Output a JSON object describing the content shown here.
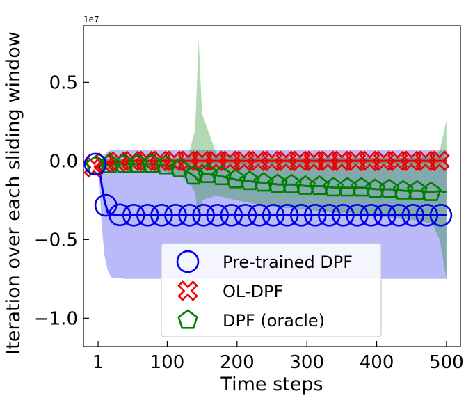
{
  "chart_data": {
    "type": "line",
    "title": "",
    "xlabel": "Time steps",
    "ylabel": "Iteration over each sliding window",
    "offset_text": "1e7",
    "xlim": [
      -20,
      520
    ],
    "ylim": [
      -1.18,
      0.86
    ],
    "x_ticks": [
      1,
      100,
      200,
      300,
      400,
      500
    ],
    "x_tick_labels": [
      "1",
      "100",
      "200",
      "300",
      "400",
      "500"
    ],
    "y_ticks": [
      -1.0,
      -0.5,
      0.0,
      0.5
    ],
    "y_tick_labels": [
      "−1.0",
      "−0.5",
      "0.0",
      "0.5"
    ],
    "grid": false,
    "legend_position": "lower-center",
    "series": [
      {
        "name": "Pre-trained DPF",
        "color": "#0000ee",
        "marker": "circle",
        "x": [
          1,
          3,
          6,
          10,
          15,
          20,
          40,
          60,
          80,
          100,
          150,
          200,
          250,
          300,
          350,
          400,
          450,
          500
        ],
        "y": [
          -0.02,
          -0.05,
          -0.15,
          -0.25,
          -0.33,
          -0.34,
          -0.345,
          -0.345,
          -0.345,
          -0.345,
          -0.345,
          -0.345,
          -0.345,
          -0.345,
          -0.345,
          -0.345,
          -0.345,
          -0.345
        ],
        "band_upper": [
          0.0,
          0.0,
          0.02,
          0.04,
          0.06,
          0.07,
          0.07,
          0.07,
          0.07,
          0.07,
          0.07,
          0.07,
          0.07,
          0.07,
          0.07,
          0.07,
          0.07,
          0.07
        ],
        "band_lower": [
          -0.05,
          -0.15,
          -0.4,
          -0.6,
          -0.7,
          -0.74,
          -0.75,
          -0.75,
          -0.75,
          -0.75,
          -0.75,
          -0.75,
          -0.75,
          -0.75,
          -0.75,
          -0.75,
          -0.75,
          -0.75
        ],
        "marker_x": [
          -3,
          12,
          32,
          52,
          72,
          92,
          112,
          132,
          152,
          172,
          192,
          212,
          232,
          252,
          272,
          292,
          312,
          332,
          352,
          372,
          392,
          412,
          432,
          452,
          472,
          492
        ]
      },
      {
        "name": "OL-DPF",
        "color": "#ee0000",
        "marker": "x",
        "x": [
          -5,
          10,
          50,
          100,
          150,
          200,
          250,
          300,
          350,
          400,
          450,
          500
        ],
        "y": [
          -0.04,
          -0.01,
          0.0,
          0.0,
          0.0,
          0.0,
          0.0,
          0.0,
          0.0,
          0.0,
          0.0,
          0.0
        ],
        "band_upper": [
          -0.02,
          0.01,
          0.02,
          0.02,
          0.02,
          0.02,
          0.02,
          0.02,
          0.02,
          0.02,
          0.02,
          0.02
        ],
        "band_lower": [
          -0.06,
          -0.03,
          -0.02,
          -0.02,
          -0.02,
          -0.02,
          -0.02,
          -0.02,
          -0.02,
          -0.02,
          -0.02,
          -0.02
        ],
        "marker_x": [
          -5,
          10,
          30,
          50,
          70,
          90,
          110,
          130,
          150,
          170,
          190,
          210,
          230,
          250,
          270,
          290,
          310,
          330,
          350,
          370,
          390,
          410,
          430,
          450,
          470,
          490
        ]
      },
      {
        "name": "DPF (oracle)",
        "color": "#008000",
        "marker": "pentagon",
        "x": [
          1,
          20,
          50,
          80,
          100,
          120,
          130,
          140,
          145,
          150,
          170,
          200,
          220,
          240,
          260,
          280,
          300,
          320,
          340,
          360,
          380,
          400,
          420,
          440,
          460,
          480,
          490,
          500
        ],
        "y": [
          -0.03,
          -0.02,
          -0.02,
          -0.02,
          -0.03,
          -0.05,
          -0.07,
          -0.1,
          -0.13,
          -0.08,
          -0.09,
          -0.12,
          -0.13,
          -0.14,
          -0.15,
          -0.15,
          -0.16,
          -0.16,
          -0.17,
          -0.17,
          -0.17,
          -0.18,
          -0.18,
          -0.19,
          -0.19,
          -0.2,
          -0.19,
          -0.2
        ],
        "band_upper": [
          0.0,
          0.01,
          0.01,
          0.01,
          0.01,
          0.02,
          0.03,
          0.2,
          0.77,
          0.3,
          0.05,
          0.03,
          0.03,
          0.02,
          0.02,
          0.02,
          0.02,
          0.02,
          0.02,
          0.02,
          0.02,
          0.02,
          0.02,
          0.02,
          0.02,
          0.05,
          0.06,
          0.26
        ],
        "band_lower": [
          -0.06,
          -0.05,
          -0.05,
          -0.06,
          -0.07,
          -0.1,
          -0.13,
          -0.2,
          -0.4,
          -0.25,
          -0.22,
          -0.25,
          -0.27,
          -0.28,
          -0.3,
          -0.3,
          -0.31,
          -0.32,
          -0.33,
          -0.33,
          -0.34,
          -0.35,
          -0.36,
          -0.37,
          -0.38,
          -0.4,
          -0.5,
          -0.75
        ],
        "marker_x": [
          -2,
          18,
          38,
          58,
          78,
          98,
          118,
          138,
          158,
          178,
          198,
          218,
          238,
          258,
          278,
          298,
          318,
          338,
          358,
          378,
          398,
          418,
          438,
          458,
          478
        ]
      }
    ]
  }
}
